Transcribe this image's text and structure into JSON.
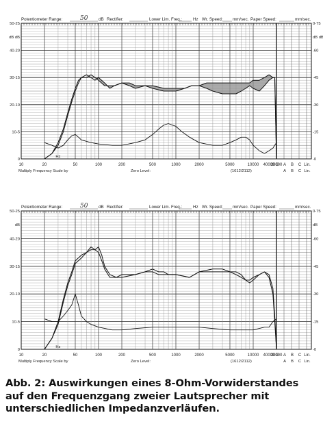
{
  "header_line": {
    "pot_range_label": "Potentiometer Range:",
    "pot_range_value": "50",
    "db_unit": "dB",
    "rectifier_label": "Rectifier:",
    "lower_lim_label": "Lower Lim. Freq.:",
    "hz_label": "Hz",
    "wr_speed_label": "Wr. Speed:",
    "mm_sec_label": "mm/sec.",
    "paper_speed_label": "Paper Speed:",
    "mm_sec_label2": "mm/sec."
  },
  "footer_line": {
    "multiply_label": "Multiply Frequency Scale by",
    "zero_level_label": "Zero Level:",
    "code_label": "(1612/2112)",
    "weight_letters": [
      "D",
      "A",
      "B",
      "C",
      "Lin."
    ],
    "weight_sub_letters": [
      "A",
      "B",
      "C",
      "Lin."
    ]
  },
  "axis_labels": {
    "db_left": "dB",
    "db_right": "dB",
    "hz_tick": "Hz"
  },
  "chart_data": [
    {
      "type": "line",
      "x_scale": "log",
      "x_ticks": [
        "10",
        "20",
        "50",
        "100",
        "200",
        "500",
        "1000",
        "2000",
        "5000",
        "10000",
        "20000",
        "40000"
      ],
      "x_tick_values": [
        10,
        20,
        50,
        100,
        200,
        500,
        1000,
        2000,
        5000,
        10000,
        20000,
        40000
      ],
      "left_ticks": [
        "50-25",
        "dB dB",
        "40-20",
        "30-15",
        "20-10",
        "10-5",
        "0"
      ],
      "right_ticks": [
        "0-75",
        "dB dB",
        "-60",
        "-45",
        "-30",
        "-15",
        "-0"
      ],
      "ylim": [
        0,
        50
      ],
      "grid": true,
      "series": [
        {
          "values": [
            [
              20,
              0
            ],
            [
              25,
              2
            ],
            [
              30,
              6
            ],
            [
              35,
              11
            ],
            [
              40,
              17
            ],
            [
              45,
              22
            ],
            [
              50,
              26
            ],
            [
              55,
              29
            ],
            [
              60,
              30
            ],
            [
              70,
              31
            ],
            [
              80,
              30
            ],
            [
              90,
              29
            ],
            [
              100,
              30
            ],
            [
              120,
              28
            ],
            [
              140,
              26
            ],
            [
              160,
              27
            ],
            [
              200,
              28
            ],
            [
              250,
              27
            ],
            [
              300,
              26
            ],
            [
              400,
              27
            ],
            [
              500,
              26
            ],
            [
              700,
              25
            ],
            [
              1000,
              25
            ],
            [
              1300,
              26
            ],
            [
              1600,
              27
            ],
            [
              2000,
              27
            ],
            [
              2500,
              26
            ],
            [
              3000,
              25
            ],
            [
              4000,
              24
            ],
            [
              5000,
              24
            ],
            [
              6000,
              24
            ],
            [
              7000,
              25
            ],
            [
              8000,
              26
            ],
            [
              9000,
              27
            ],
            [
              10000,
              26
            ],
            [
              12000,
              25
            ],
            [
              14000,
              27
            ],
            [
              16000,
              29
            ],
            [
              18000,
              30
            ],
            [
              19000,
              30
            ],
            [
              20000,
              0
            ]
          ]
        },
        {
          "values": [
            [
              20,
              0
            ],
            [
              25,
              2
            ],
            [
              30,
              5
            ],
            [
              35,
              10
            ],
            [
              40,
              16
            ],
            [
              45,
              21
            ],
            [
              50,
              25
            ],
            [
              55,
              28
            ],
            [
              60,
              30
            ],
            [
              70,
              30
            ],
            [
              80,
              31
            ],
            [
              90,
              30
            ],
            [
              100,
              29
            ],
            [
              120,
              27
            ],
            [
              140,
              27
            ],
            [
              160,
              27
            ],
            [
              200,
              28
            ],
            [
              250,
              28
            ],
            [
              300,
              27
            ],
            [
              400,
              27
            ],
            [
              500,
              27
            ],
            [
              700,
              26
            ],
            [
              1000,
              26
            ],
            [
              1300,
              26
            ],
            [
              1600,
              27
            ],
            [
              2000,
              27
            ],
            [
              2500,
              28
            ],
            [
              3000,
              28
            ],
            [
              4000,
              28
            ],
            [
              5000,
              28
            ],
            [
              6000,
              28
            ],
            [
              7000,
              28
            ],
            [
              8000,
              28
            ],
            [
              9000,
              28
            ],
            [
              10000,
              29
            ],
            [
              12000,
              29
            ],
            [
              14000,
              30
            ],
            [
              16000,
              31
            ],
            [
              18000,
              30
            ],
            [
              19000,
              30
            ],
            [
              20000,
              0
            ]
          ]
        },
        {
          "values": [
            [
              20,
              6
            ],
            [
              25,
              5
            ],
            [
              30,
              4
            ],
            [
              35,
              5
            ],
            [
              40,
              7
            ],
            [
              45,
              8.5
            ],
            [
              50,
              9
            ],
            [
              55,
              8
            ],
            [
              60,
              7
            ],
            [
              80,
              6
            ],
            [
              100,
              5.5
            ],
            [
              150,
              5
            ],
            [
              200,
              5
            ],
            [
              300,
              6
            ],
            [
              400,
              7
            ],
            [
              500,
              9
            ],
            [
              600,
              11
            ],
            [
              700,
              12.5
            ],
            [
              800,
              13
            ],
            [
              1000,
              12
            ],
            [
              1200,
              10
            ],
            [
              1500,
              8
            ],
            [
              2000,
              6
            ],
            [
              3000,
              5
            ],
            [
              4000,
              5
            ],
            [
              5000,
              6
            ],
            [
              6000,
              7
            ],
            [
              7000,
              8
            ],
            [
              8000,
              8
            ],
            [
              9000,
              7
            ],
            [
              10000,
              5
            ],
            [
              12000,
              3
            ],
            [
              14000,
              2
            ],
            [
              16000,
              3
            ],
            [
              18000,
              4
            ],
            [
              20000,
              6
            ]
          ]
        }
      ]
    },
    {
      "type": "line",
      "x_scale": "log",
      "x_ticks": [
        "10",
        "20",
        "50",
        "100",
        "200",
        "500",
        "1000",
        "2000",
        "5000",
        "10000",
        "20000",
        "40000"
      ],
      "x_tick_values": [
        10,
        20,
        50,
        100,
        200,
        500,
        1000,
        2000,
        5000,
        10000,
        20000,
        40000
      ],
      "left_ticks": [
        "50-25",
        "dB",
        "40-20",
        "30-15",
        "20-10",
        "10-5",
        "0"
      ],
      "right_ticks": [
        "0-75",
        "dB",
        "-60",
        "-45",
        "-30",
        "-15",
        "-0"
      ],
      "ylim": [
        0,
        50
      ],
      "grid": true,
      "series": [
        {
          "values": [
            [
              20,
              0
            ],
            [
              25,
              4
            ],
            [
              30,
              10
            ],
            [
              35,
              18
            ],
            [
              40,
              24
            ],
            [
              45,
              28
            ],
            [
              50,
              32
            ],
            [
              60,
              34
            ],
            [
              70,
              35
            ],
            [
              80,
              37
            ],
            [
              90,
              36
            ],
            [
              100,
              37
            ],
            [
              110,
              34
            ],
            [
              120,
              30
            ],
            [
              140,
              27
            ],
            [
              170,
              26
            ],
            [
              200,
              27
            ],
            [
              300,
              27
            ],
            [
              400,
              28
            ],
            [
              500,
              29
            ],
            [
              600,
              28
            ],
            [
              700,
              28
            ],
            [
              800,
              27
            ],
            [
              1000,
              27
            ],
            [
              1500,
              26
            ],
            [
              2000,
              28
            ],
            [
              3000,
              29
            ],
            [
              4000,
              29
            ],
            [
              5000,
              28
            ],
            [
              6000,
              28
            ],
            [
              7000,
              27
            ],
            [
              8000,
              25
            ],
            [
              9000,
              24
            ],
            [
              10000,
              25
            ],
            [
              12000,
              27
            ],
            [
              14000,
              28
            ],
            [
              16000,
              26
            ],
            [
              18000,
              20
            ],
            [
              19000,
              10
            ],
            [
              20000,
              0
            ]
          ]
        },
        {
          "values": [
            [
              20,
              0
            ],
            [
              25,
              4
            ],
            [
              30,
              9
            ],
            [
              35,
              17
            ],
            [
              40,
              23
            ],
            [
              45,
              27
            ],
            [
              50,
              31
            ],
            [
              60,
              33
            ],
            [
              70,
              35
            ],
            [
              80,
              36
            ],
            [
              90,
              36
            ],
            [
              100,
              35
            ],
            [
              110,
              32
            ],
            [
              120,
              29
            ],
            [
              140,
              26
            ],
            [
              170,
              26
            ],
            [
              200,
              26
            ],
            [
              300,
              27
            ],
            [
              400,
              28
            ],
            [
              500,
              28
            ],
            [
              600,
              27
            ],
            [
              700,
              27
            ],
            [
              800,
              27
            ],
            [
              1000,
              27
            ],
            [
              1500,
              26
            ],
            [
              2000,
              28
            ],
            [
              3000,
              28
            ],
            [
              4000,
              28
            ],
            [
              5000,
              28
            ],
            [
              6000,
              27
            ],
            [
              7000,
              26
            ],
            [
              8000,
              25
            ],
            [
              9000,
              25
            ],
            [
              10000,
              26
            ],
            [
              12000,
              27
            ],
            [
              14000,
              28
            ],
            [
              16000,
              27
            ],
            [
              18000,
              22
            ],
            [
              19000,
              12
            ],
            [
              20000,
              0
            ]
          ]
        },
        {
          "values": [
            [
              20,
              11
            ],
            [
              25,
              10
            ],
            [
              30,
              10
            ],
            [
              35,
              12
            ],
            [
              40,
              14
            ],
            [
              45,
              16
            ],
            [
              50,
              20
            ],
            [
              55,
              16
            ],
            [
              60,
              12
            ],
            [
              70,
              10
            ],
            [
              80,
              9
            ],
            [
              100,
              8
            ],
            [
              150,
              7
            ],
            [
              200,
              7
            ],
            [
              300,
              7.5
            ],
            [
              500,
              8
            ],
            [
              700,
              8
            ],
            [
              1000,
              8
            ],
            [
              2000,
              8
            ],
            [
              3000,
              7.5
            ],
            [
              5000,
              7
            ],
            [
              8000,
              7
            ],
            [
              10000,
              7
            ],
            [
              14000,
              8
            ],
            [
              16000,
              8
            ],
            [
              18000,
              10
            ],
            [
              20000,
              11
            ]
          ]
        }
      ]
    }
  ],
  "caption": {
    "line1": "Abb. 2: Auswirkungen eines 8-Ohm-Vorwiderstandes",
    "line2": "auf den Frequenzgang zweier Lautsprecher mit",
    "line3": "unterschiedlichen Impedanzverläufen."
  }
}
